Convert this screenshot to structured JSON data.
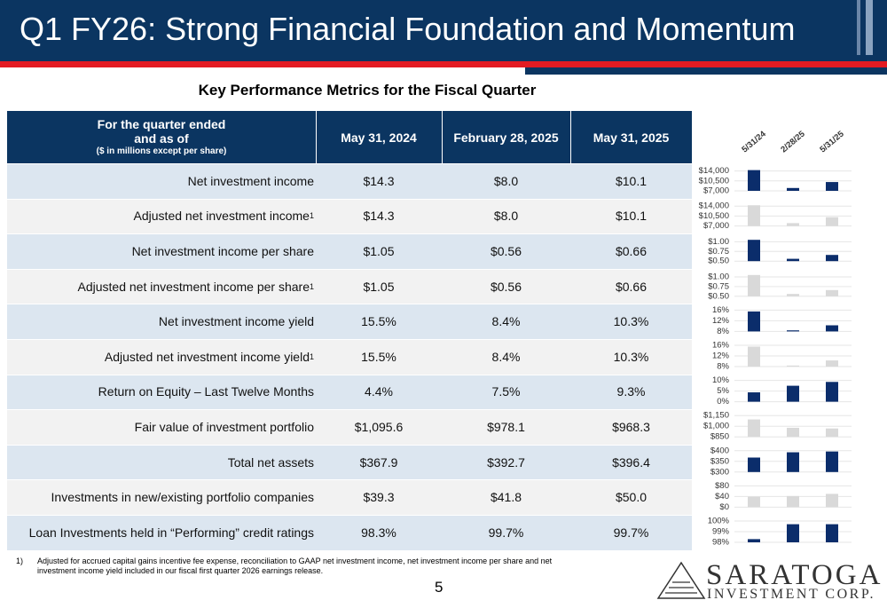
{
  "header": {
    "title": "Q1 FY26: Strong Financial Foundation and Momentum"
  },
  "subtitle": "Key Performance Metrics for the Fiscal Quarter",
  "table": {
    "header": {
      "line1": "For the quarter ended",
      "line2": "and as of",
      "line3": "($ in millions except per share)",
      "columns": [
        "May 31, 2024",
        "February 28, 2025",
        "May 31, 2025"
      ]
    },
    "rows": [
      {
        "label": "Net investment income",
        "cells": [
          "$14.3",
          "$8.0",
          "$10.1"
        ]
      },
      {
        "label": "Adjusted net investment income",
        "note": "1",
        "cells": [
          "$14.3",
          "$8.0",
          "$10.1"
        ]
      },
      {
        "label": "Net investment income per share",
        "cells": [
          "$1.05",
          "$0.56",
          "$0.66"
        ]
      },
      {
        "label": "Adjusted net investment income per share",
        "note": "1",
        "cells": [
          "$1.05",
          "$0.56",
          "$0.66"
        ]
      },
      {
        "label": "Net investment income yield",
        "cells": [
          "15.5%",
          "8.4%",
          "10.3%"
        ]
      },
      {
        "label": "Adjusted net investment income yield",
        "note": "1",
        "cells": [
          "15.5%",
          "8.4%",
          "10.3%"
        ]
      },
      {
        "label": "Return on Equity – Last Twelve Months",
        "cells": [
          "4.4%",
          "7.5%",
          "9.3%"
        ]
      },
      {
        "label": "Fair value of investment portfolio",
        "cells": [
          "$1,095.6",
          "$978.1",
          "$968.3"
        ]
      },
      {
        "label": "Total net assets",
        "cells": [
          "$367.9",
          "$392.7",
          "$396.4"
        ]
      },
      {
        "label": "Investments in new/existing portfolio companies",
        "cells": [
          "$39.3",
          "$41.8",
          "$50.0"
        ]
      },
      {
        "label": "Loan Investments held in “Performing” credit ratings",
        "cells": [
          "98.3%",
          "99.7%",
          "99.7%"
        ]
      }
    ]
  },
  "sparks": {
    "dates": [
      "5/31/24",
      "2/28/25",
      "5/31/25"
    ],
    "charts": [
      {
        "type": "bar",
        "color": "#0b2d6b",
        "values": [
          14300,
          8000,
          10100
        ],
        "ylim": [
          7000,
          14500
        ],
        "yticks": [
          {
            "value": 7000,
            "label": "$7,000"
          },
          {
            "value": 10500,
            "label": "$10,500"
          },
          {
            "value": 14000,
            "label": "$14,000"
          }
        ]
      },
      {
        "type": "bar",
        "color": "#d9d9d9",
        "values": [
          14300,
          8000,
          10100
        ],
        "ylim": [
          7000,
          14500
        ],
        "yticks": [
          {
            "value": 7000,
            "label": "$7,000"
          },
          {
            "value": 10500,
            "label": "$10,500"
          },
          {
            "value": 14000,
            "label": "$14,000"
          }
        ]
      },
      {
        "type": "bar",
        "color": "#0b2d6b",
        "values": [
          1.05,
          0.56,
          0.66
        ],
        "ylim": [
          0.5,
          1.05
        ],
        "yticks": [
          {
            "value": 0.5,
            "label": "$0.50"
          },
          {
            "value": 0.75,
            "label": "$0.75"
          },
          {
            "value": 1.0,
            "label": "$1.00"
          }
        ]
      },
      {
        "type": "bar",
        "color": "#d9d9d9",
        "values": [
          1.05,
          0.56,
          0.66
        ],
        "ylim": [
          0.5,
          1.05
        ],
        "yticks": [
          {
            "value": 0.5,
            "label": "$0.50"
          },
          {
            "value": 0.75,
            "label": "$0.75"
          },
          {
            "value": 1.0,
            "label": "$1.00"
          }
        ]
      },
      {
        "type": "bar",
        "color": "#0b2d6b",
        "values": [
          15.5,
          8.4,
          10.3
        ],
        "ylim": [
          8,
          16
        ],
        "yticks": [
          {
            "value": 8,
            "label": "8%"
          },
          {
            "value": 12,
            "label": "12%"
          },
          {
            "value": 16,
            "label": "16%"
          }
        ]
      },
      {
        "type": "bar",
        "color": "#d9d9d9",
        "values": [
          15.5,
          8.4,
          10.3
        ],
        "ylim": [
          8,
          16
        ],
        "yticks": [
          {
            "value": 8,
            "label": "8%"
          },
          {
            "value": 12,
            "label": "12%"
          },
          {
            "value": 16,
            "label": "16%"
          }
        ]
      },
      {
        "type": "bar",
        "color": "#0b2d6b",
        "values": [
          4.4,
          7.5,
          9.3
        ],
        "ylim": [
          0,
          10
        ],
        "yticks": [
          {
            "value": 0,
            "label": "0%"
          },
          {
            "value": 5,
            "label": "5%"
          },
          {
            "value": 10,
            "label": "10%"
          }
        ]
      },
      {
        "type": "bar",
        "color": "#d9d9d9",
        "values": [
          1095.6,
          978.1,
          968.3
        ],
        "ylim": [
          850,
          1150
        ],
        "yticks": [
          {
            "value": 850,
            "label": "$850"
          },
          {
            "value": 1000,
            "label": "$1,000"
          },
          {
            "value": 1150,
            "label": "$1,150"
          }
        ]
      },
      {
        "type": "bar",
        "color": "#0b2d6b",
        "values": [
          367.9,
          392.7,
          396.4
        ],
        "ylim": [
          300,
          400
        ],
        "yticks": [
          {
            "value": 300,
            "label": "$300"
          },
          {
            "value": 350,
            "label": "$350"
          },
          {
            "value": 400,
            "label": "$400"
          }
        ]
      },
      {
        "type": "bar",
        "color": "#d9d9d9",
        "values": [
          39.3,
          41.8,
          50.0
        ],
        "ylim": [
          0,
          80
        ],
        "yticks": [
          {
            "value": 0,
            "label": "$0"
          },
          {
            "value": 40,
            "label": "$40"
          },
          {
            "value": 80,
            "label": "$80"
          }
        ]
      },
      {
        "type": "bar",
        "color": "#0b2d6b",
        "values": [
          98.3,
          99.7,
          99.7
        ],
        "ylim": [
          98,
          100
        ],
        "yticks": [
          {
            "value": 98,
            "label": "98%"
          },
          {
            "value": 99,
            "label": "99%"
          },
          {
            "value": 100,
            "label": "100%"
          }
        ]
      }
    ]
  },
  "footnote": {
    "marker": "1)",
    "text": "Adjusted for accrued capital gains incentive fee expense, reconciliation to GAAP net investment income, net investment income per share and net investment income yield included in our fiscal first quarter 2026 earnings release."
  },
  "page_number": "5",
  "logo": {
    "name": "SARATOGA",
    "tagline": "INVESTMENT CORP."
  }
}
